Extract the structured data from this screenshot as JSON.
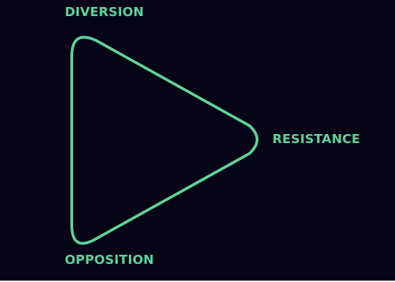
{
  "diagram": {
    "accent_color": "#5ed39b",
    "background_color": "#050316",
    "shape": "rounded-triangle",
    "labels": {
      "top": "DIVERSION",
      "right": "RESISTANCE",
      "bottom": "OPPOSITION"
    }
  }
}
